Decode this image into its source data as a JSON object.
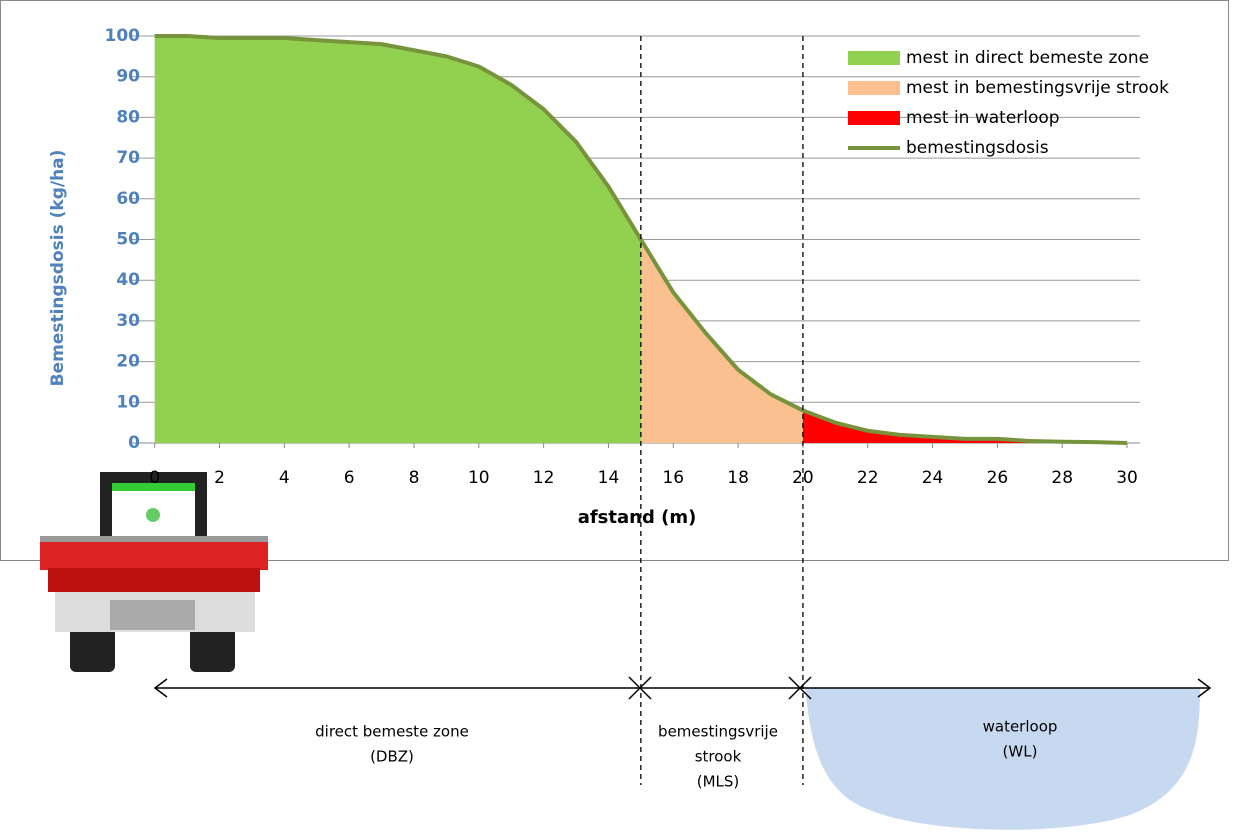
{
  "chart_data": {
    "type": "area",
    "y_label": "Bemestingsdosis  (kg/ha)",
    "x_label": "afstand  (m)",
    "x": [
      0,
      1,
      2,
      3,
      4,
      5,
      6,
      7,
      8,
      9,
      10,
      11,
      12,
      13,
      14,
      15,
      16,
      17,
      18,
      19,
      20,
      21,
      22,
      23,
      24,
      25,
      26,
      27,
      28,
      29,
      30
    ],
    "line": {
      "name": "bemestingsdosis",
      "color": "#77933c",
      "values": [
        100,
        100,
        99.5,
        99.5,
        99.5,
        99,
        98.5,
        98,
        96.5,
        95,
        92.5,
        88,
        82,
        74,
        63,
        50,
        37,
        27,
        18,
        12,
        8,
        5,
        3,
        2,
        1.5,
        1,
        1,
        0.5,
        0.3,
        0.2,
        0
      ]
    },
    "areas": [
      {
        "name": "mest in direct bemeste zone",
        "color": "#92d050",
        "x_range": [
          0,
          15
        ]
      },
      {
        "name": "mest in bemestingsvrije strook",
        "color": "#fac090",
        "x_range": [
          15,
          20
        ]
      },
      {
        "name": "mest in waterloop",
        "color": "#ff0000",
        "x_range": [
          20,
          30
        ]
      }
    ],
    "xlim": [
      -0.7,
      30.4
    ],
    "ylim": [
      0,
      100
    ],
    "xticks": [
      0,
      2,
      4,
      6,
      8,
      10,
      12,
      14,
      16,
      18,
      20,
      22,
      24,
      26,
      28,
      30
    ],
    "yticks": [
      0,
      10,
      20,
      30,
      40,
      50,
      60,
      70,
      80,
      90,
      100
    ],
    "grid": true
  },
  "diagram": {
    "zones": [
      {
        "lines": [
          "direct bemeste zone",
          "(DBZ)"
        ]
      },
      {
        "lines": [
          "bemestingsvrije",
          "strook",
          "(MLS)"
        ]
      },
      {
        "lines": [
          "waterloop",
          "(WL)"
        ]
      }
    ]
  }
}
